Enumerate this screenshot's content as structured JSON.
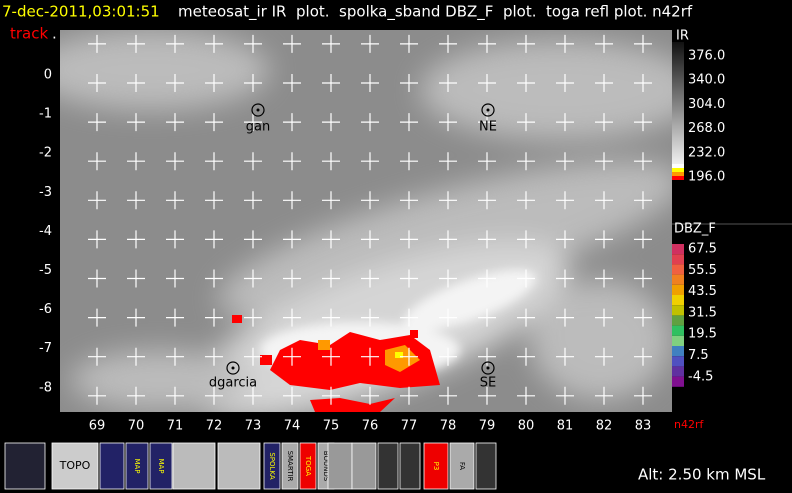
{
  "header": {
    "timestamp": "7-dec-2011,03:01:51",
    "description": "meteosat_ir IR  plot.  spolka_sband DBZ_F  plot.  toga refl plot. n42rf",
    "track": "track",
    "track_suffix": "."
  },
  "map": {
    "lat_labels": [
      "0",
      "-1",
      "-2",
      "-3",
      "-4",
      "-5",
      "-6",
      "-7",
      "-8"
    ],
    "lon_labels": [
      "69",
      "70",
      "71",
      "72",
      "73",
      "74",
      "75",
      "76",
      "77",
      "78",
      "79",
      "80",
      "81",
      "82",
      "83"
    ],
    "stations": [
      "gan",
      "NE",
      "dgarcia",
      "SE"
    ],
    "platform_label": "n42rf"
  },
  "colorbars": [
    {
      "title": "IR",
      "labels": [
        "376.0",
        "340.0",
        "304.0",
        "268.0",
        "232.0",
        "196.0"
      ]
    },
    {
      "title": "DBZ_F",
      "labels": [
        "67.5",
        "55.5",
        "43.5",
        "31.5",
        "19.5",
        "7.5",
        "-4.5"
      ]
    }
  ],
  "toolbar": {
    "topo": "TOPO",
    "map1": "MAP",
    "map2": "MAP",
    "spolka": "SPOLKA",
    "smartir": "SMARTIR",
    "toga": "TOGA",
    "bounds": "BOUNDS",
    "p3": "P3",
    "fa": "FA"
  },
  "status": "Alt: 2.50 km MSL"
}
